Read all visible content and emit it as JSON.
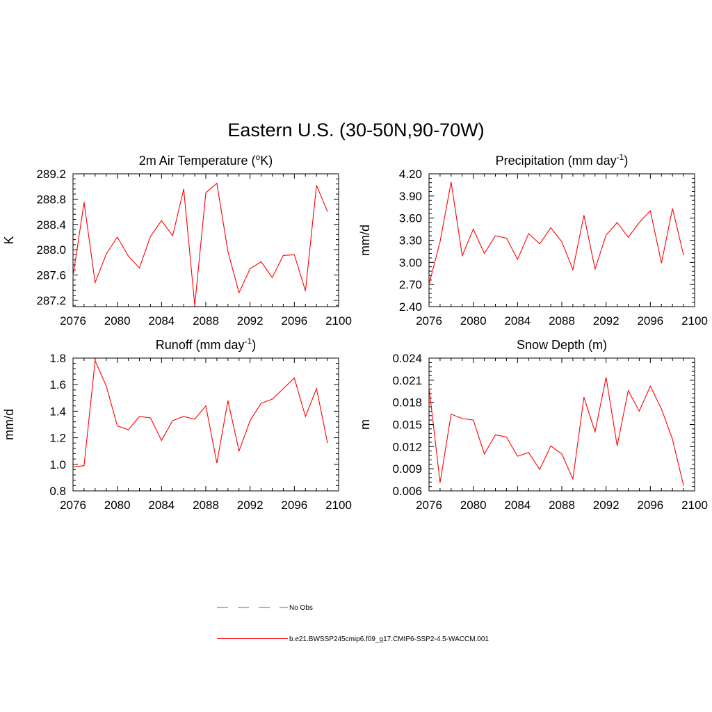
{
  "figure_title": "Eastern U.S. (30-50N,90-70W)",
  "colors": {
    "model_line": "#ff0000",
    "obs_line": "#9a9ae6",
    "axis": "#000000"
  },
  "legend": {
    "obs_label": "No Obs",
    "model_label": "b.e21.BWSSP245cmip6.f09_g17.CMIP6-SSP2-4.5-WACCM.001"
  },
  "chart_data": [
    {
      "type": "line",
      "title_main": "2m Air Temperature (",
      "title_sup": "o",
      "title_end": "K)",
      "ylabel": "K",
      "xlim": [
        2076,
        2100
      ],
      "x_ticks": [
        "2076",
        "2080",
        "2084",
        "2088",
        "2092",
        "2096",
        "2100"
      ],
      "ylim": [
        287.1,
        289.2
      ],
      "y_ticks": [
        "287.2",
        "287.6",
        "288.0",
        "288.4",
        "288.8",
        "289.2"
      ],
      "x": [
        2076,
        2077,
        2078,
        2079,
        2080,
        2081,
        2082,
        2083,
        2084,
        2085,
        2086,
        2087,
        2088,
        2089,
        2090,
        2091,
        2092,
        2093,
        2094,
        2095,
        2096,
        2097,
        2098,
        2099
      ],
      "series": [
        {
          "name": "b.e21.BWSSP245cmip6.f09_g17.CMIP6-SSP2-4.5-WACCM.001",
          "values": [
            287.58,
            288.75,
            287.48,
            287.93,
            288.2,
            287.9,
            287.71,
            288.21,
            288.46,
            288.22,
            288.96,
            287.12,
            288.9,
            289.05,
            287.97,
            287.32,
            287.7,
            287.81,
            287.56,
            287.91,
            287.92,
            287.35,
            289.02,
            288.6
          ]
        }
      ]
    },
    {
      "type": "line",
      "title_main": "Precipitation (mm day",
      "title_sup": "-1",
      "title_end": ")",
      "ylabel": "mm/d",
      "xlim": [
        2076,
        2100
      ],
      "x_ticks": [
        "2076",
        "2080",
        "2084",
        "2088",
        "2092",
        "2096",
        "2100"
      ],
      "ylim": [
        2.4,
        4.2
      ],
      "y_ticks": [
        "2.40",
        "2.70",
        "3.00",
        "3.30",
        "3.60",
        "3.90",
        "4.20"
      ],
      "x": [
        2076,
        2077,
        2078,
        2079,
        2080,
        2081,
        2082,
        2083,
        2084,
        2085,
        2086,
        2087,
        2088,
        2089,
        2090,
        2091,
        2092,
        2093,
        2094,
        2095,
        2096,
        2097,
        2098,
        2099
      ],
      "series": [
        {
          "name": "b.e21.BWSSP245cmip6.f09_g17.CMIP6-SSP2-4.5-WACCM.001",
          "values": [
            2.7,
            3.28,
            4.09,
            3.09,
            3.45,
            3.12,
            3.36,
            3.33,
            3.04,
            3.39,
            3.25,
            3.47,
            3.28,
            2.9,
            3.64,
            2.91,
            3.37,
            3.54,
            3.34,
            3.54,
            3.7,
            2.99,
            3.73,
            3.1
          ]
        }
      ]
    },
    {
      "type": "line",
      "title_main": "Runoff (mm day",
      "title_sup": "-1",
      "title_end": ")",
      "ylabel": "mm/d",
      "xlim": [
        2076,
        2100
      ],
      "x_ticks": [
        "2076",
        "2080",
        "2084",
        "2088",
        "2092",
        "2096",
        "2100"
      ],
      "ylim": [
        0.8,
        1.8
      ],
      "y_ticks": [
        "0.8",
        "1.0",
        "1.2",
        "1.4",
        "1.6",
        "1.8"
      ],
      "x": [
        2076,
        2077,
        2078,
        2079,
        2080,
        2081,
        2082,
        2083,
        2084,
        2085,
        2086,
        2087,
        2088,
        2089,
        2090,
        2091,
        2092,
        2093,
        2094,
        2095,
        2096,
        2097,
        2098,
        2099
      ],
      "series": [
        {
          "name": "b.e21.BWSSP245cmip6.f09_g17.CMIP6-SSP2-4.5-WACCM.001",
          "values": [
            0.98,
            0.99,
            1.78,
            1.59,
            1.29,
            1.26,
            1.36,
            1.35,
            1.18,
            1.33,
            1.36,
            1.34,
            1.44,
            1.01,
            1.48,
            1.1,
            1.33,
            1.46,
            1.49,
            1.57,
            1.65,
            1.36,
            1.57,
            1.16
          ]
        }
      ]
    },
    {
      "type": "line",
      "title_main": "Snow Depth (m)",
      "title_sup": "",
      "title_end": "",
      "ylabel": "m",
      "xlim": [
        2076,
        2100
      ],
      "x_ticks": [
        "2076",
        "2080",
        "2084",
        "2088",
        "2092",
        "2096",
        "2100"
      ],
      "ylim": [
        0.006,
        0.024
      ],
      "y_ticks": [
        "0.006",
        "0.009",
        "0.012",
        "0.015",
        "0.018",
        "0.021",
        "0.024"
      ],
      "x": [
        2076,
        2077,
        2078,
        2079,
        2080,
        2081,
        2082,
        2083,
        2084,
        2085,
        2086,
        2087,
        2088,
        2089,
        2090,
        2091,
        2092,
        2093,
        2094,
        2095,
        2096,
        2097,
        2098,
        2099
      ],
      "series": [
        {
          "name": "b.e21.BWSSP245cmip6.f09_g17.CMIP6-SSP2-4.5-WACCM.001",
          "values": [
            0.0201,
            0.0071,
            0.0164,
            0.0158,
            0.0156,
            0.011,
            0.0136,
            0.0133,
            0.0107,
            0.0112,
            0.0089,
            0.0121,
            0.011,
            0.0076,
            0.0187,
            0.014,
            0.0214,
            0.0121,
            0.0196,
            0.0168,
            0.0202,
            0.0171,
            0.013,
            0.0067
          ]
        }
      ]
    }
  ]
}
